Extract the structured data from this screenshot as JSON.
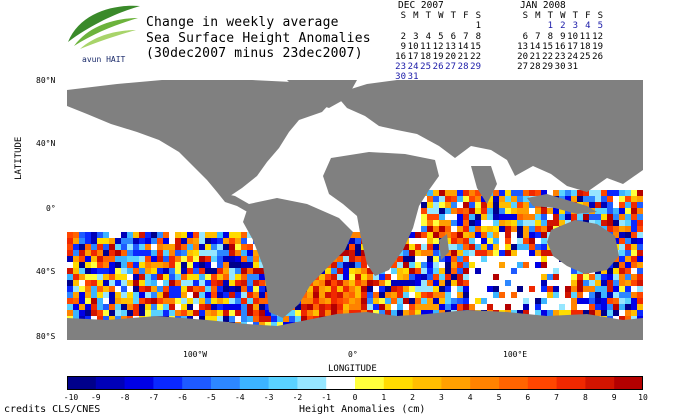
{
  "title": {
    "line1": "Change in weekly average",
    "line2": "Sea Surface Height Anomalies",
    "line3": "(30dec2007 minus 23dec2007)"
  },
  "logo": {
    "text": "avun HAIT"
  },
  "calendars": [
    {
      "month": "DEC 2007",
      "weekdays": [
        "S",
        "M",
        "T",
        "W",
        "T",
        "F",
        "S"
      ],
      "weeks": [
        [
          "",
          "",
          "",
          "",
          "",
          "",
          "1"
        ],
        [
          "2",
          "3",
          "4",
          "5",
          "6",
          "7",
          "8"
        ],
        [
          "9",
          "10",
          "11",
          "12",
          "13",
          "14",
          "15"
        ],
        [
          "16",
          "17",
          "18",
          "19",
          "20",
          "21",
          "22"
        ],
        [
          "23",
          "24",
          "25",
          "26",
          "27",
          "28",
          "29"
        ],
        [
          "30",
          "31",
          "",
          "",
          "",
          "",
          ""
        ]
      ],
      "highlighted": [
        "23",
        "24",
        "25",
        "26",
        "27",
        "28",
        "29",
        "30",
        "31"
      ]
    },
    {
      "month": "JAN 2008",
      "weekdays": [
        "S",
        "M",
        "T",
        "W",
        "T",
        "F",
        "S"
      ],
      "weeks": [
        [
          "",
          "",
          "1",
          "2",
          "3",
          "4",
          "5"
        ],
        [
          "6",
          "7",
          "8",
          "9",
          "10",
          "11",
          "12"
        ],
        [
          "13",
          "14",
          "15",
          "16",
          "17",
          "18",
          "19"
        ],
        [
          "20",
          "21",
          "22",
          "23",
          "24",
          "25",
          "26"
        ],
        [
          "27",
          "28",
          "29",
          "30",
          "31",
          "",
          ""
        ]
      ],
      "highlighted": [
        "1",
        "2",
        "3",
        "4",
        "5"
      ]
    }
  ],
  "axes": {
    "y_label": "LATITUDE",
    "x_label": "LONGITUDE",
    "y_ticks": [
      "80°N",
      "40°N",
      "0°",
      "40°S",
      "80°S"
    ],
    "x_ticks": [
      "100°W",
      "0°",
      "100°E"
    ]
  },
  "colorbar": {
    "title": "Height Anomalies (cm)",
    "ticks": [
      "-10",
      "-9",
      "-8",
      "-7",
      "-6",
      "-5",
      "-4",
      "-3",
      "-2",
      "-1",
      "0",
      "1",
      "2",
      "3",
      "4",
      "5",
      "6",
      "7",
      "8",
      "9",
      "10"
    ],
    "colors": [
      "#00008b",
      "#0000b8",
      "#0000e6",
      "#0a28ff",
      "#1e5aff",
      "#2d87ff",
      "#3cb4ff",
      "#5ad2ff",
      "#96e6ff",
      "#ffffff",
      "#ffff3c",
      "#ffdc00",
      "#ffbe00",
      "#ffa000",
      "#ff8200",
      "#ff6400",
      "#ff4600",
      "#f02800",
      "#d21400",
      "#b40000"
    ]
  },
  "colors": {
    "land": "#808080",
    "ocean_blank": "#ffffff"
  },
  "credits": "credits CLS/CNES"
}
